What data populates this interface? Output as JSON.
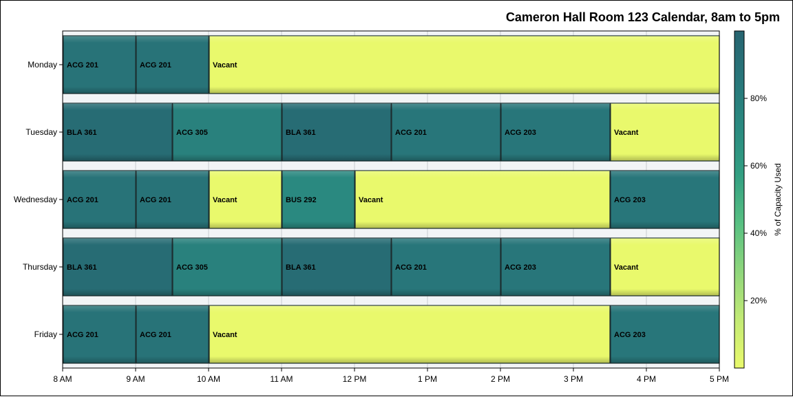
{
  "chart_data": {
    "type": "bar",
    "title": "Cameron Hall Room 123 Calendar, 8am to 5pm",
    "xlabel": "",
    "ylabel": "",
    "x_range": [
      8,
      17
    ],
    "x_ticks": [
      {
        "value": 8,
        "label": "8 AM"
      },
      {
        "value": 9,
        "label": "9 AM"
      },
      {
        "value": 10,
        "label": "10 AM"
      },
      {
        "value": 11,
        "label": "11 AM"
      },
      {
        "value": 12,
        "label": "12 PM"
      },
      {
        "value": 13,
        "label": "1 PM"
      },
      {
        "value": 14,
        "label": "2 PM"
      },
      {
        "value": 15,
        "label": "3 PM"
      },
      {
        "value": 16,
        "label": "4 PM"
      },
      {
        "value": 17,
        "label": "5 PM"
      }
    ],
    "categories": [
      "Monday",
      "Tuesday",
      "Wednesday",
      "Thursday",
      "Friday"
    ],
    "grid": true,
    "colorbar": {
      "label": "% of Capacity Used",
      "range": [
        0,
        100
      ],
      "ticks": [
        {
          "value": 20,
          "label": "20%"
        },
        {
          "value": 40,
          "label": "40%"
        },
        {
          "value": 60,
          "label": "60%"
        },
        {
          "value": 80,
          "label": "80%"
        }
      ],
      "colors": [
        "#e9f96c",
        "#c3ea75",
        "#8fd67c",
        "#58c082",
        "#339f82",
        "#2a8a80",
        "#28767a",
        "#276470"
      ],
      "placement": "right"
    },
    "rows": [
      {
        "day": "Monday",
        "segments": [
          {
            "start": 8,
            "end": 9,
            "label": "ACG 201",
            "pct": 88
          },
          {
            "start": 9,
            "end": 10,
            "label": "ACG 201",
            "pct": 88
          },
          {
            "start": 10,
            "end": 17,
            "label": "Vacant",
            "pct": 0
          }
        ]
      },
      {
        "day": "Tuesday",
        "segments": [
          {
            "start": 8,
            "end": 9.5,
            "label": "BLA 361",
            "pct": 94
          },
          {
            "start": 9.5,
            "end": 11,
            "label": "ACG 305",
            "pct": 78
          },
          {
            "start": 11,
            "end": 12.5,
            "label": "BLA 361",
            "pct": 94
          },
          {
            "start": 12.5,
            "end": 14,
            "label": "ACG 201",
            "pct": 86
          },
          {
            "start": 14,
            "end": 15.5,
            "label": "ACG 203",
            "pct": 86
          },
          {
            "start": 15.5,
            "end": 17,
            "label": "Vacant",
            "pct": 0
          }
        ]
      },
      {
        "day": "Wednesday",
        "segments": [
          {
            "start": 8,
            "end": 9,
            "label": "ACG 201",
            "pct": 88
          },
          {
            "start": 9,
            "end": 10,
            "label": "ACG 201",
            "pct": 88
          },
          {
            "start": 10,
            "end": 11,
            "label": "Vacant",
            "pct": 0
          },
          {
            "start": 11,
            "end": 12,
            "label": "BUS 292",
            "pct": 72
          },
          {
            "start": 12,
            "end": 15.5,
            "label": "Vacant",
            "pct": 0
          },
          {
            "start": 15.5,
            "end": 17,
            "label": "ACG 203",
            "pct": 86
          }
        ]
      },
      {
        "day": "Thursday",
        "segments": [
          {
            "start": 8,
            "end": 9.5,
            "label": "BLA 361",
            "pct": 94
          },
          {
            "start": 9.5,
            "end": 11,
            "label": "ACG 305",
            "pct": 78
          },
          {
            "start": 11,
            "end": 12.5,
            "label": "BLA 361",
            "pct": 94
          },
          {
            "start": 12.5,
            "end": 14,
            "label": "ACG 201",
            "pct": 86
          },
          {
            "start": 14,
            "end": 15.5,
            "label": "ACG 203",
            "pct": 86
          },
          {
            "start": 15.5,
            "end": 17,
            "label": "Vacant",
            "pct": 0
          }
        ]
      },
      {
        "day": "Friday",
        "segments": [
          {
            "start": 8,
            "end": 9,
            "label": "ACG 201",
            "pct": 88
          },
          {
            "start": 9,
            "end": 10,
            "label": "ACG 201",
            "pct": 88
          },
          {
            "start": 10,
            "end": 15.5,
            "label": "Vacant",
            "pct": 0
          },
          {
            "start": 15.5,
            "end": 17,
            "label": "ACG 203",
            "pct": 86
          }
        ]
      }
    ]
  }
}
